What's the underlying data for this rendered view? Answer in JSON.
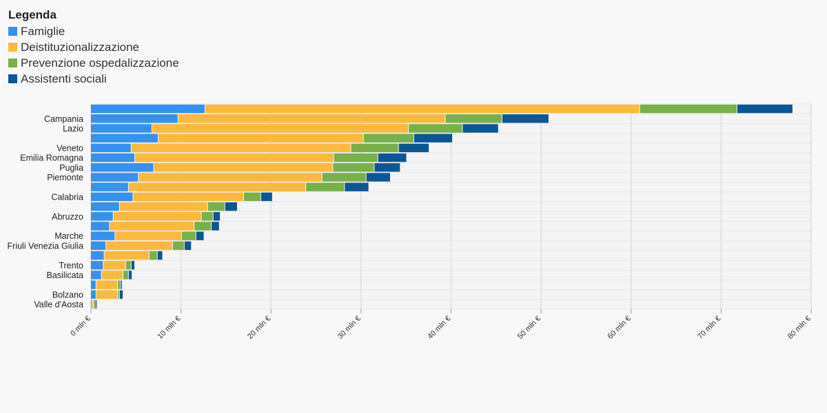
{
  "legend": {
    "title": "Legenda"
  },
  "chart_data": {
    "type": "bar",
    "orientation": "horizontal",
    "stacked": true,
    "xlim": [
      0,
      80
    ],
    "x_ticks": [
      0,
      10,
      20,
      30,
      40,
      50,
      60,
      70,
      80
    ],
    "x_tick_labels": [
      "0 mln €",
      "10 mln €",
      "20 mln €",
      "30 mln €",
      "40 mln €",
      "50 mln €",
      "60 mln €",
      "70 mln €",
      "80 mln €"
    ],
    "grid": true,
    "legend_position": "top-left",
    "categories": [
      "",
      "Campania",
      "Lazio",
      "",
      "Veneto",
      "Emilia Romagna",
      "Puglia",
      "Piemonte",
      "",
      "Calabria",
      "",
      "Abruzzo",
      "",
      "Marche",
      "Friuli Venezia Giulia",
      "",
      "Trento",
      "Basilicata",
      "",
      "Bolzano",
      "Valle d'Aosta"
    ],
    "series": [
      {
        "name": "Famiglie",
        "color": "#3592ef",
        "values": [
          12.7,
          9.7,
          6.8,
          7.5,
          4.5,
          4.9,
          7.0,
          5.3,
          4.2,
          4.7,
          3.2,
          2.5,
          2.1,
          2.7,
          1.7,
          1.5,
          1.4,
          1.2,
          0.6,
          0.6,
          0.15
        ]
      },
      {
        "name": "Deistituzionalizzazione",
        "color": "#fdb93d",
        "values": [
          48.3,
          29.7,
          28.5,
          22.8,
          24.4,
          22.1,
          19.9,
          20.4,
          19.7,
          12.3,
          9.8,
          9.8,
          9.4,
          7.4,
          7.4,
          5.0,
          2.5,
          2.4,
          2.4,
          2.4,
          0.15
        ]
      },
      {
        "name": "Prevenzione ospedalizzazione",
        "color": "#78b04a",
        "values": [
          10.8,
          6.3,
          6.0,
          5.6,
          5.3,
          4.9,
          4.6,
          4.9,
          4.3,
          1.9,
          1.9,
          1.3,
          1.9,
          1.6,
          1.3,
          0.9,
          0.6,
          0.6,
          0.3,
          0.2,
          0.2
        ]
      },
      {
        "name": "Assistenti sociali",
        "color": "#0b5794",
        "values": [
          6.2,
          5.2,
          4.0,
          4.3,
          3.4,
          3.2,
          2.9,
          2.7,
          2.7,
          1.3,
          1.4,
          0.8,
          0.9,
          0.9,
          0.8,
          0.6,
          0.4,
          0.4,
          0.2,
          0.4,
          0.2
        ]
      }
    ]
  }
}
